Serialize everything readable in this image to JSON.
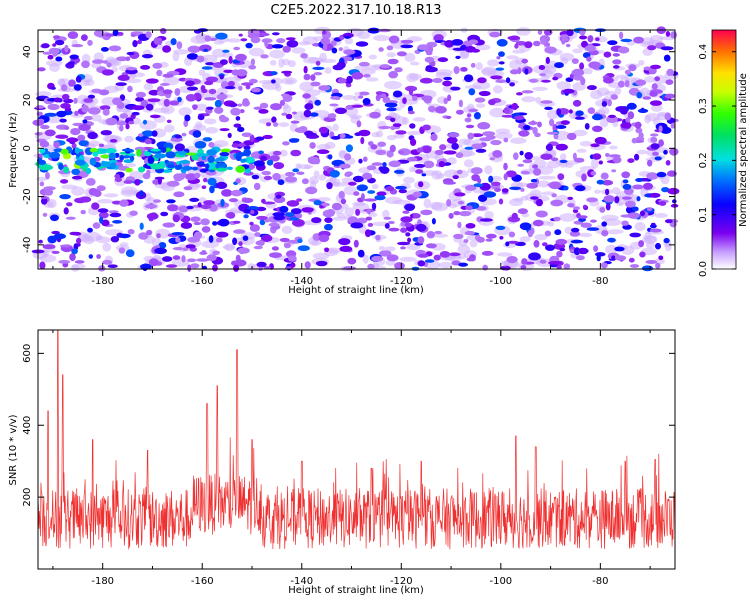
{
  "title": "C2E5.2022.317.10.18.R13",
  "chart_data": [
    {
      "type": "heatmap",
      "xlabel": "Height of straight line (km)",
      "ylabel": "Frequency (Hz)",
      "xlim": [
        -193,
        -65
      ],
      "ylim": [
        -50,
        49
      ],
      "xticks": [
        -180,
        -160,
        -140,
        -120,
        -100,
        -80
      ],
      "yticks": [
        -40,
        -20,
        0,
        20,
        40
      ],
      "grid": false,
      "colorbar": {
        "label": "Normalized spectral amplitude",
        "range": [
          0.0,
          0.44
        ],
        "ticks": [
          "0.0",
          "0.1",
          "0.2",
          "0.3",
          "0.4"
        ]
      },
      "features": {
        "band_center_frequency_hz": -5,
        "band_height_range_km": [
          -193,
          -150
        ],
        "band_peak_amplitude": 0.33,
        "background_amplitude": 0.06
      },
      "xtick_labels": [
        "-180",
        "-160",
        "-140",
        "-120",
        "-100",
        "-80"
      ],
      "ytick_labels": [
        "-40",
        "-20",
        "0",
        "20",
        "40"
      ]
    },
    {
      "type": "line",
      "xlabel": "Height of straight line (km)",
      "ylabel": "SNR (10 * v/v)",
      "xlim": [
        -193,
        -65
      ],
      "ylim": [
        0,
        665
      ],
      "xticks": [
        -180,
        -160,
        -140,
        -120,
        -100,
        -80
      ],
      "yticks": [
        200,
        400,
        600
      ],
      "xtick_labels": [
        "-180",
        "-160",
        "-140",
        "-120",
        "-100",
        "-80"
      ],
      "ytick_labels": [
        "200",
        "400",
        "600"
      ],
      "color": "#f03030",
      "series": [
        {
          "name": "SNR",
          "baseline": 140,
          "peaks": [
            {
              "x": -191.0,
              "y": 440
            },
            {
              "x": -189.0,
              "y": 665
            },
            {
              "x": -188.0,
              "y": 540
            },
            {
              "x": -182.0,
              "y": 360
            },
            {
              "x": -171.0,
              "y": 330
            },
            {
              "x": -159.0,
              "y": 460
            },
            {
              "x": -157.0,
              "y": 510
            },
            {
              "x": -153.0,
              "y": 610
            },
            {
              "x": -150.0,
              "y": 360
            },
            {
              "x": -140.0,
              "y": 300
            },
            {
              "x": -126.0,
              "y": 280
            },
            {
              "x": -116.0,
              "y": 300
            },
            {
              "x": -97.0,
              "y": 370
            },
            {
              "x": -93.0,
              "y": 340
            },
            {
              "x": -75.0,
              "y": 300
            },
            {
              "x": -69.0,
              "y": 305
            }
          ]
        }
      ]
    }
  ]
}
